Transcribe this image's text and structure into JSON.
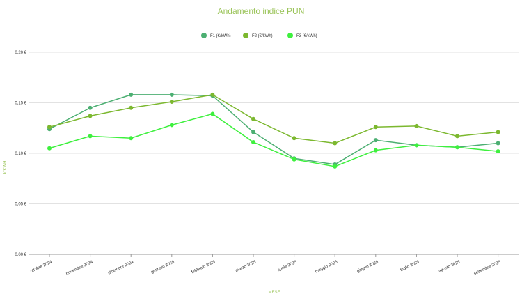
{
  "chart_data": {
    "type": "line",
    "title": "Andamento indice PUN",
    "xlabel": "MESE",
    "ylabel": "€/KWH",
    "ylim": [
      0,
      0.2
    ],
    "yticks": [
      "0,00 €",
      "0,05 €",
      "0,10 €",
      "0,15 €",
      "0,20 €"
    ],
    "ytick_values": [
      0,
      0.05,
      0.1,
      0.15,
      0.2
    ],
    "legend_position": "top-center",
    "grid": true,
    "categories": [
      "ottobre 2024",
      "novembre 2024",
      "dicembre 2024",
      "gennaio 2025",
      "febbraio 2025",
      "marzo 2025",
      "aprile 2025",
      "maggio 2025",
      "giugno 2025",
      "luglio 2025",
      "agosto 2025",
      "settembre 2025"
    ],
    "series": [
      {
        "name": "F1 (€/kWh)",
        "color": "#4caf72",
        "values": [
          0.124,
          0.145,
          0.158,
          0.158,
          0.157,
          0.121,
          0.095,
          0.089,
          0.113,
          0.108,
          0.106,
          0.11
        ]
      },
      {
        "name": "F2 (€/kWh)",
        "color": "#7cb82f",
        "values": [
          0.126,
          0.137,
          0.145,
          0.151,
          0.158,
          0.134,
          0.115,
          0.11,
          0.126,
          0.127,
          0.117,
          0.121
        ]
      },
      {
        "name": "F3 (€/kWh)",
        "color": "#3ef03e",
        "values": [
          0.105,
          0.117,
          0.115,
          0.128,
          0.139,
          0.111,
          0.094,
          0.087,
          0.103,
          0.108,
          0.106,
          0.102
        ]
      }
    ],
    "title_color": "#9bc45a"
  }
}
